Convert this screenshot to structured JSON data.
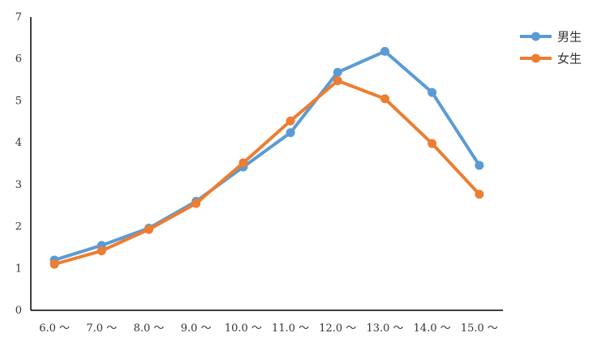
{
  "chart_data": {
    "type": "line",
    "categories": [
      "6.0 ～",
      "7.0 ～",
      "8.0 ～",
      "9.0 ～",
      "10.0 ～",
      "11.0 ～",
      "12.0 ～",
      "13.0 ～",
      "14.0 ～",
      "15.0 ～"
    ],
    "series": [
      {
        "name": "男生",
        "color": "#5B9BD5",
        "values": [
          1.2,
          1.55,
          1.96,
          2.6,
          3.42,
          4.24,
          5.68,
          6.18,
          5.2,
          3.46
        ]
      },
      {
        "name": "女生",
        "color": "#ED7D31",
        "values": [
          1.1,
          1.42,
          1.93,
          2.55,
          3.52,
          4.52,
          5.48,
          5.05,
          3.98,
          2.77
        ]
      }
    ],
    "title": "",
    "xlabel": "",
    "ylabel": "",
    "ylim": [
      0,
      7
    ],
    "yticks": [
      "0",
      "1",
      "2",
      "3",
      "4",
      "5",
      "6",
      "7"
    ],
    "grid": false,
    "legend_position": "top-right"
  }
}
